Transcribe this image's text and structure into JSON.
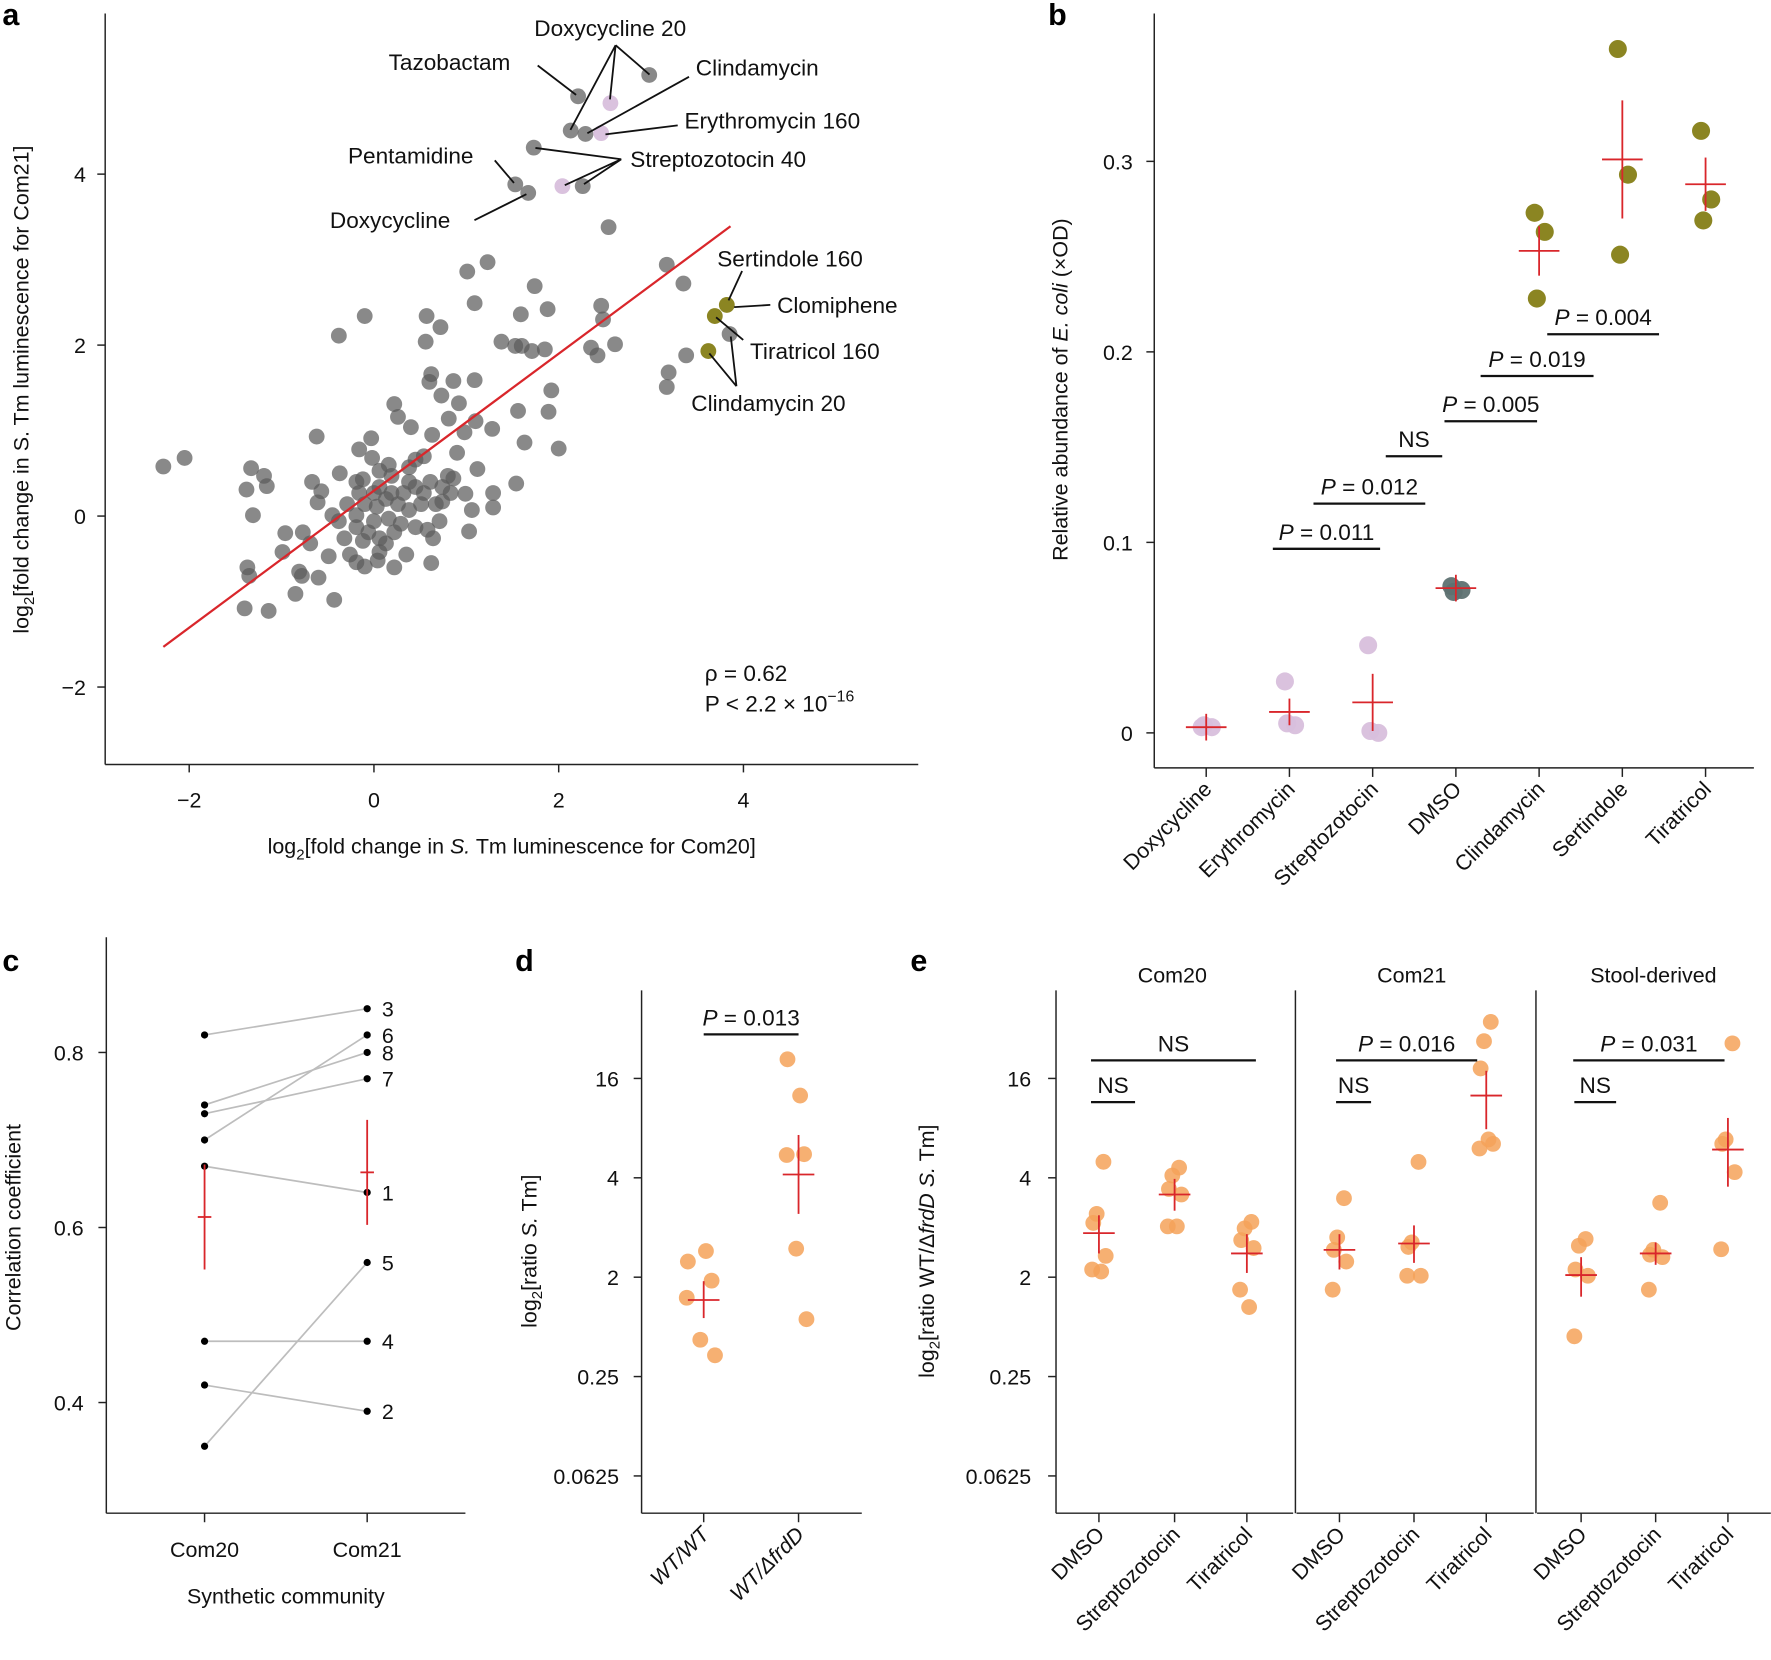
{
  "colors": {
    "gray": "#5c5c5c",
    "pink": "#d8bfdc",
    "olive": "#857e16",
    "dmso": "#5e7171",
    "orange": "#f4a259",
    "red": "#d9262b",
    "pair_line": "#bdbdbd"
  },
  "chart_data": [
    {
      "panel": "a",
      "type": "scatter",
      "xlabel": "log2[fold change in S. Tm luminescence for Com20]",
      "ylabel": "log2[fold change in S. Tm luminescence for Com21]",
      "xlim": [
        -2.9,
        5.9
      ],
      "ylim": [
        -2.9,
        5.9
      ],
      "xticks": [
        -2,
        0,
        2,
        4
      ],
      "yticks": [
        -2,
        0,
        2,
        4
      ],
      "fit_line": {
        "x": [
          -2.28,
          3.86
        ],
        "y": [
          -1.53,
          3.39
        ]
      },
      "stats": {
        "rho": "ρ = 0.62",
        "p": "P < 2.2 × 10",
        "p_exp": "−16"
      },
      "series": [
        {
          "color": "gray",
          "points": [
            [
              2.98,
              5.16
            ],
            [
              2.21,
              4.91
            ],
            [
              2.13,
              4.51
            ],
            [
              2.29,
              4.47
            ],
            [
              1.73,
              4.31
            ],
            [
              1.53,
              3.88
            ],
            [
              1.67,
              3.78
            ],
            [
              2.26,
              3.86
            ],
            [
              2.54,
              3.38
            ],
            [
              3.85,
              2.13
            ],
            [
              3.17,
              2.94
            ],
            [
              3.35,
              2.72
            ],
            [
              3.38,
              1.88
            ],
            [
              3.19,
              1.68
            ],
            [
              3.17,
              1.51
            ],
            [
              2.46,
              2.46
            ],
            [
              2.48,
              2.3
            ],
            [
              2.35,
              1.97
            ],
            [
              2.42,
              1.88
            ],
            [
              2.61,
              2.01
            ],
            [
              1.23,
              2.97
            ],
            [
              1.01,
              2.86
            ],
            [
              1.74,
              2.69
            ],
            [
              1.09,
              2.49
            ],
            [
              1.59,
              2.36
            ],
            [
              1.88,
              2.42
            ],
            [
              0.57,
              2.34
            ],
            [
              0.72,
              2.21
            ],
            [
              0.56,
              2.04
            ],
            [
              -0.1,
              2.34
            ],
            [
              -0.38,
              2.11
            ],
            [
              1.38,
              2.04
            ],
            [
              1.53,
              1.99
            ],
            [
              1.6,
              1.99
            ],
            [
              1.71,
              1.93
            ],
            [
              1.85,
              1.95
            ],
            [
              1.92,
              1.47
            ],
            [
              1.56,
              1.23
            ],
            [
              1.89,
              1.22
            ],
            [
              0.62,
              1.66
            ],
            [
              0.6,
              1.57
            ],
            [
              0.86,
              1.58
            ],
            [
              1.09,
              1.59
            ],
            [
              0.73,
              1.41
            ],
            [
              0.92,
              1.32
            ],
            [
              0.22,
              1.31
            ],
            [
              0.26,
              1.16
            ],
            [
              0.4,
              1.04
            ],
            [
              0.81,
              1.14
            ],
            [
              0.98,
              0.98
            ],
            [
              1.1,
              1.11
            ],
            [
              1.28,
              1.02
            ],
            [
              1.63,
              0.86
            ],
            [
              2.0,
              0.79
            ],
            [
              -0.62,
              0.93
            ],
            [
              -0.03,
              0.91
            ],
            [
              -0.16,
              0.78
            ],
            [
              -0.02,
              0.68
            ],
            [
              0.9,
              0.74
            ],
            [
              0.63,
              0.95
            ],
            [
              1.12,
              0.55
            ],
            [
              0.86,
              0.44
            ],
            [
              1.54,
              0.38
            ],
            [
              1.29,
              0.27
            ],
            [
              1.29,
              0.1
            ],
            [
              1.06,
              0.07
            ],
            [
              1.03,
              -0.18
            ],
            [
              0.99,
              0.26
            ],
            [
              -2.28,
              0.58
            ],
            [
              -2.05,
              0.68
            ],
            [
              -1.33,
              0.56
            ],
            [
              -1.19,
              0.47
            ],
            [
              -1.38,
              0.31
            ],
            [
              -1.16,
              0.35
            ],
            [
              -1.31,
              0.01
            ],
            [
              -0.96,
              -0.2
            ],
            [
              -0.99,
              -0.42
            ],
            [
              -1.37,
              -0.6
            ],
            [
              -1.35,
              -0.7
            ],
            [
              -0.81,
              -0.65
            ],
            [
              -0.78,
              -0.7
            ],
            [
              -0.6,
              -0.72
            ],
            [
              -0.85,
              -0.91
            ],
            [
              -0.43,
              -0.98
            ],
            [
              -1.4,
              -1.08
            ],
            [
              -1.14,
              -1.11
            ],
            [
              -0.67,
              0.4
            ],
            [
              -0.57,
              0.29
            ],
            [
              -0.61,
              0.16
            ],
            [
              -0.37,
              0.5
            ],
            [
              -0.69,
              -0.32
            ],
            [
              -0.77,
              -0.19
            ],
            [
              -0.49,
              -0.47
            ],
            [
              -0.19,
              -0.54
            ],
            [
              0.04,
              -0.52
            ],
            [
              -0.1,
              -0.59
            ],
            [
              0.22,
              -0.6
            ],
            [
              0.35,
              -0.45
            ],
            [
              0.62,
              -0.55
            ],
            [
              -0.19,
              0.4
            ],
            [
              -0.12,
              0.43
            ],
            [
              0.06,
              0.53
            ],
            [
              0.16,
              0.6
            ],
            [
              0.19,
              0.47
            ],
            [
              0.38,
              0.4
            ],
            [
              0.45,
              0.34
            ],
            [
              0.54,
              0.27
            ],
            [
              0.61,
              0.4
            ],
            [
              0.67,
              0.14
            ],
            [
              0.74,
              0.17
            ],
            [
              0.71,
              -0.06
            ],
            [
              0.64,
              -0.26
            ],
            [
              0.51,
              0.14
            ],
            [
              0.38,
              0.07
            ],
            [
              0.26,
              0.14
            ],
            [
              0.13,
              0.2
            ],
            [
              0.0,
              0.27
            ],
            [
              -0.1,
              0.14
            ],
            [
              -0.19,
              0.01
            ],
            [
              -0.29,
              0.14
            ],
            [
              -0.38,
              -0.06
            ],
            [
              -0.45,
              0.01
            ],
            [
              -0.32,
              -0.26
            ],
            [
              -0.19,
              -0.13
            ],
            [
              -0.06,
              -0.19
            ],
            [
              0.06,
              -0.26
            ],
            [
              0.13,
              -0.32
            ],
            [
              0.0,
              -0.06
            ],
            [
              0.16,
              -0.03
            ],
            [
              0.29,
              -0.09
            ],
            [
              0.45,
              -0.13
            ],
            [
              0.58,
              -0.16
            ],
            [
              -0.16,
              0.27
            ],
            [
              0.06,
              0.34
            ],
            [
              0.19,
              0.27
            ],
            [
              0.32,
              0.27
            ],
            [
              0.45,
              0.66
            ],
            [
              0.54,
              0.7
            ],
            [
              0.38,
              0.57
            ],
            [
              0.8,
              0.47
            ],
            [
              0.74,
              0.34
            ],
            [
              0.83,
              0.27
            ],
            [
              -0.26,
              -0.45
            ],
            [
              0.06,
              -0.42
            ],
            [
              0.22,
              -0.19
            ],
            [
              -0.12,
              -0.29
            ],
            [
              0.03,
              0.11
            ]
          ]
        },
        {
          "color": "pink",
          "points": [
            [
              2.56,
              4.83
            ],
            [
              2.46,
              4.48
            ],
            [
              2.04,
              3.86
            ]
          ]
        },
        {
          "color": "olive",
          "points": [
            [
              3.82,
              2.47
            ],
            [
              3.69,
              2.34
            ],
            [
              3.62,
              1.93
            ]
          ]
        }
      ],
      "annotations": [
        "Doxycycline 20",
        "Tazobactam",
        "Clindamycin",
        "Erythromycin 160",
        "Pentamidine",
        "Streptozotocin 40",
        "Doxycycline",
        "Sertindole 160",
        "Clomiphene",
        "Tiratricol 160",
        "Clindamycin 20"
      ]
    },
    {
      "panel": "b",
      "type": "strip",
      "ylabel": "Relative abundance of E. coli (×OD)",
      "ylim": [
        -0.018,
        0.378
      ],
      "yticks": [
        0,
        0.1,
        0.2,
        0.3
      ],
      "ytick_labels": [
        "0",
        "0.1",
        "0.2",
        "0.3"
      ],
      "categories": [
        "Doxycycline",
        "Erythromycin",
        "Streptozotocin",
        "DMSO",
        "Clindamycin",
        "Sertindole",
        "Tiratricol"
      ],
      "colors": [
        "pink",
        "pink",
        "pink",
        "dmso",
        "olive",
        "olive",
        "olive"
      ],
      "values": [
        [
          0.003,
          0.003,
          0.004
        ],
        [
          0.027,
          0.004,
          0.005
        ],
        [
          0.046,
          0.0,
          0.001
        ],
        [
          0.077,
          0.075,
          0.074
        ],
        [
          0.273,
          0.263,
          0.228
        ],
        [
          0.359,
          0.293,
          0.251
        ],
        [
          0.316,
          0.28,
          0.269
        ]
      ],
      "mean": [
        0.003,
        0.011,
        0.016,
        0.076,
        0.253,
        0.301,
        0.288
      ],
      "error": [
        0.007,
        0.007,
        0.015,
        0.007,
        0.013,
        0.031,
        0.014
      ],
      "comparisons": [
        "P = 0.011",
        "P = 0.012",
        "NS",
        "P = 0.005",
        "P = 0.019",
        "P = 0.004"
      ]
    },
    {
      "panel": "c",
      "type": "paired-line",
      "xlabel": "Synthetic community",
      "ylabel": "Correlation coefficient",
      "categories": [
        "Com20",
        "Com21"
      ],
      "yticks": [
        0.4,
        0.6,
        0.8
      ],
      "ytick_labels": [
        "0.4",
        "0.6",
        "0.8"
      ],
      "ylim": [
        0.28,
        0.93
      ],
      "pairs": [
        {
          "label": "3",
          "values": [
            0.82,
            0.85
          ]
        },
        {
          "label": "6",
          "values": [
            0.7,
            0.82
          ]
        },
        {
          "label": "8",
          "values": [
            0.74,
            0.8
          ]
        },
        {
          "label": "7",
          "values": [
            0.73,
            0.77
          ]
        },
        {
          "label": "1",
          "values": [
            0.67,
            0.64
          ]
        },
        {
          "label": "5",
          "values": [
            0.35,
            0.56
          ]
        },
        {
          "label": "4",
          "values": [
            0.47,
            0.47
          ]
        },
        {
          "label": "2",
          "values": [
            0.42,
            0.39
          ]
        }
      ],
      "mean": [
        0.612,
        0.663
      ],
      "error": [
        0.06,
        0.06
      ]
    },
    {
      "panel": "d",
      "type": "strip",
      "ylabel": "log2[ratio S. Tm]",
      "yticks": [
        16,
        4,
        2,
        0.25,
        0.0625
      ],
      "ytick_labels": [
        "16",
        "4",
        "2",
        "0.25",
        "0.0625"
      ],
      "categories": [
        "WT/WT",
        "WT/ΔfrdD"
      ],
      "values": [
        [
          2.23,
          2.4,
          1.86,
          1.3,
          0.54,
          0.39
        ],
        [
          20.9,
          12.6,
          5.56,
          5.5,
          2.44,
          0.83
        ]
      ],
      "mean": [
        1.24,
        4.19
      ],
      "error_range": [
        [
          0.85,
          1.84
        ],
        [
          3.11,
          7.27
        ]
      ],
      "comparisons": [
        "P = 0.013"
      ]
    },
    {
      "panel": "e",
      "type": "strip-faceted",
      "ylabel": "log2[ratio WT/ΔfrdD S. Tm]",
      "yticks": [
        16,
        4,
        2,
        0.25,
        0.0625
      ],
      "ytick_labels": [
        "16",
        "4",
        "2",
        "0.25",
        "0.0625"
      ],
      "facets": [
        {
          "title": "Com20",
          "categories": [
            "DMSO",
            "Streptozotocin",
            "Tiratricol"
          ],
          "values": [
            [
              5.0,
              3.11,
              2.92,
              2.32,
              2.11,
              2.08
            ],
            [
              4.61,
              4.13,
              3.7,
              3.56,
              2.85,
              2.85
            ],
            [
              2.94,
              2.81,
              2.59,
              2.45,
              1.54,
              1.07
            ]
          ],
          "mean": [
            2.72,
            3.56,
            2.36
          ],
          "error_range": [
            [
              2.36,
              3.08
            ],
            [
              3.18,
              3.97
            ],
            [
              2.06,
              2.7
            ]
          ],
          "comparisons": [
            "NS",
            "NS"
          ]
        },
        {
          "title": "Com21",
          "categories": [
            "DMSO",
            "Streptozotocin",
            "Tiratricol"
          ],
          "values": [
            [
              3.47,
              2.64,
              2.42,
              2.23,
              1.54
            ],
            [
              4.99,
              2.55,
              2.47,
              2.02,
              2.02
            ],
            [
              35.2,
              26.9,
              18.4,
              6.42,
              6.02,
              6.83
            ]
          ],
          "mean": [
            2.42,
            2.53,
            12.6
          ],
          "error_range": [
            [
              2.11,
              2.7
            ],
            [
              2.21,
              2.87
            ],
            [
              7.88,
              17.8
            ]
          ],
          "comparisons": [
            "P = 0.016",
            "NS"
          ]
        },
        {
          "title": "Stool-derived",
          "categories": [
            "DMSO",
            "Streptozotocin",
            "Tiratricol"
          ],
          "values": [
            [
              2.61,
              2.49,
              2.11,
              2.02,
              0.58
            ],
            [
              3.36,
              2.42,
              2.34,
              2.3,
              1.54
            ],
            [
              26.1,
              6.83,
              6.42,
              4.33,
              2.43
            ]
          ],
          "mean": [
            2.03,
            2.36,
            5.93
          ],
          "error_range": [
            [
              1.33,
              2.3
            ],
            [
              2.18,
              2.55
            ],
            [
              3.76,
              9.22
            ]
          ],
          "comparisons": [
            "P = 0.031",
            "NS"
          ]
        }
      ]
    }
  ],
  "panel_letters": [
    "a",
    "b",
    "c",
    "d",
    "e"
  ]
}
